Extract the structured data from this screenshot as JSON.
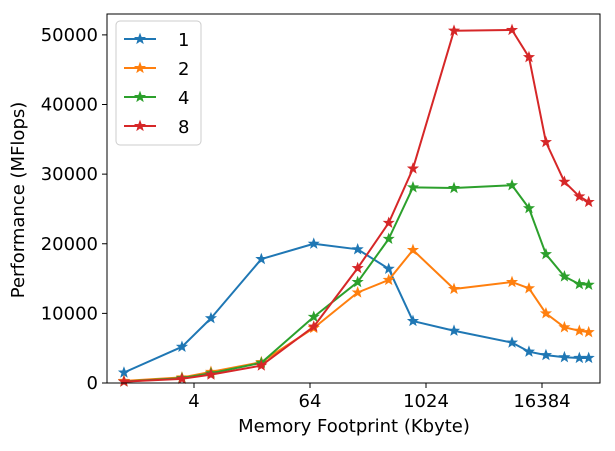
{
  "chart_data": {
    "type": "line",
    "title": "",
    "xlabel": "Memory Footprint (Kbyte)",
    "ylabel": "Performance (MFlops)",
    "xscale": "log2",
    "xlim": [
      0.5,
      65536
    ],
    "ylim": [
      0,
      53000
    ],
    "xticks": [
      {
        "value": 4,
        "label": "4"
      },
      {
        "value": 64,
        "label": "64"
      },
      {
        "value": 1024,
        "label": "1024"
      },
      {
        "value": 16384,
        "label": "16384"
      }
    ],
    "yticks": [
      {
        "value": 0,
        "label": "0"
      },
      {
        "value": 10000,
        "label": "10000"
      },
      {
        "value": 20000,
        "label": "20000"
      },
      {
        "value": 30000,
        "label": "30000"
      },
      {
        "value": 40000,
        "label": "40000"
      },
      {
        "value": 50000,
        "label": "50000"
      }
    ],
    "grid": false,
    "legend_position": "top-left",
    "marker": "star",
    "series": [
      {
        "name": "1",
        "color": "#1f77b4",
        "points": [
          [
            0.75,
            1500
          ],
          [
            3,
            5200
          ],
          [
            6,
            9300
          ],
          [
            20,
            17800
          ],
          [
            70,
            20000
          ],
          [
            200,
            19200
          ],
          [
            420,
            16400
          ],
          [
            750,
            8900
          ],
          [
            2000,
            7500
          ],
          [
            8000,
            5800
          ],
          [
            12000,
            4500
          ],
          [
            18000,
            4000
          ],
          [
            28000,
            3700
          ],
          [
            40000,
            3600
          ],
          [
            50000,
            3600
          ]
        ]
      },
      {
        "name": "2",
        "color": "#ff7f0e",
        "points": [
          [
            0.75,
            300
          ],
          [
            3,
            800
          ],
          [
            6,
            1600
          ],
          [
            20,
            3000
          ],
          [
            70,
            7900
          ],
          [
            200,
            13000
          ],
          [
            420,
            14800
          ],
          [
            750,
            19100
          ],
          [
            2000,
            13500
          ],
          [
            8000,
            14500
          ],
          [
            12000,
            13600
          ],
          [
            18000,
            10000
          ],
          [
            28000,
            8000
          ],
          [
            40000,
            7500
          ],
          [
            50000,
            7300
          ]
        ]
      },
      {
        "name": "4",
        "color": "#2ca02c",
        "points": [
          [
            0.75,
            200
          ],
          [
            3,
            700
          ],
          [
            6,
            1400
          ],
          [
            20,
            2900
          ],
          [
            70,
            9500
          ],
          [
            200,
            14500
          ],
          [
            420,
            20700
          ],
          [
            750,
            28100
          ],
          [
            2000,
            28000
          ],
          [
            8000,
            28400
          ],
          [
            12000,
            25100
          ],
          [
            18000,
            18500
          ],
          [
            28000,
            15300
          ],
          [
            40000,
            14200
          ],
          [
            50000,
            14100
          ]
        ]
      },
      {
        "name": "8",
        "color": "#d62728",
        "points": [
          [
            0.75,
            200
          ],
          [
            3,
            600
          ],
          [
            6,
            1200
          ],
          [
            20,
            2500
          ],
          [
            70,
            8100
          ],
          [
            200,
            16500
          ],
          [
            420,
            23000
          ],
          [
            750,
            30800
          ],
          [
            2000,
            50600
          ],
          [
            8000,
            50700
          ],
          [
            12000,
            46800
          ],
          [
            18000,
            34600
          ],
          [
            28000,
            28900
          ],
          [
            40000,
            26800
          ],
          [
            50000,
            26000
          ]
        ]
      }
    ]
  }
}
